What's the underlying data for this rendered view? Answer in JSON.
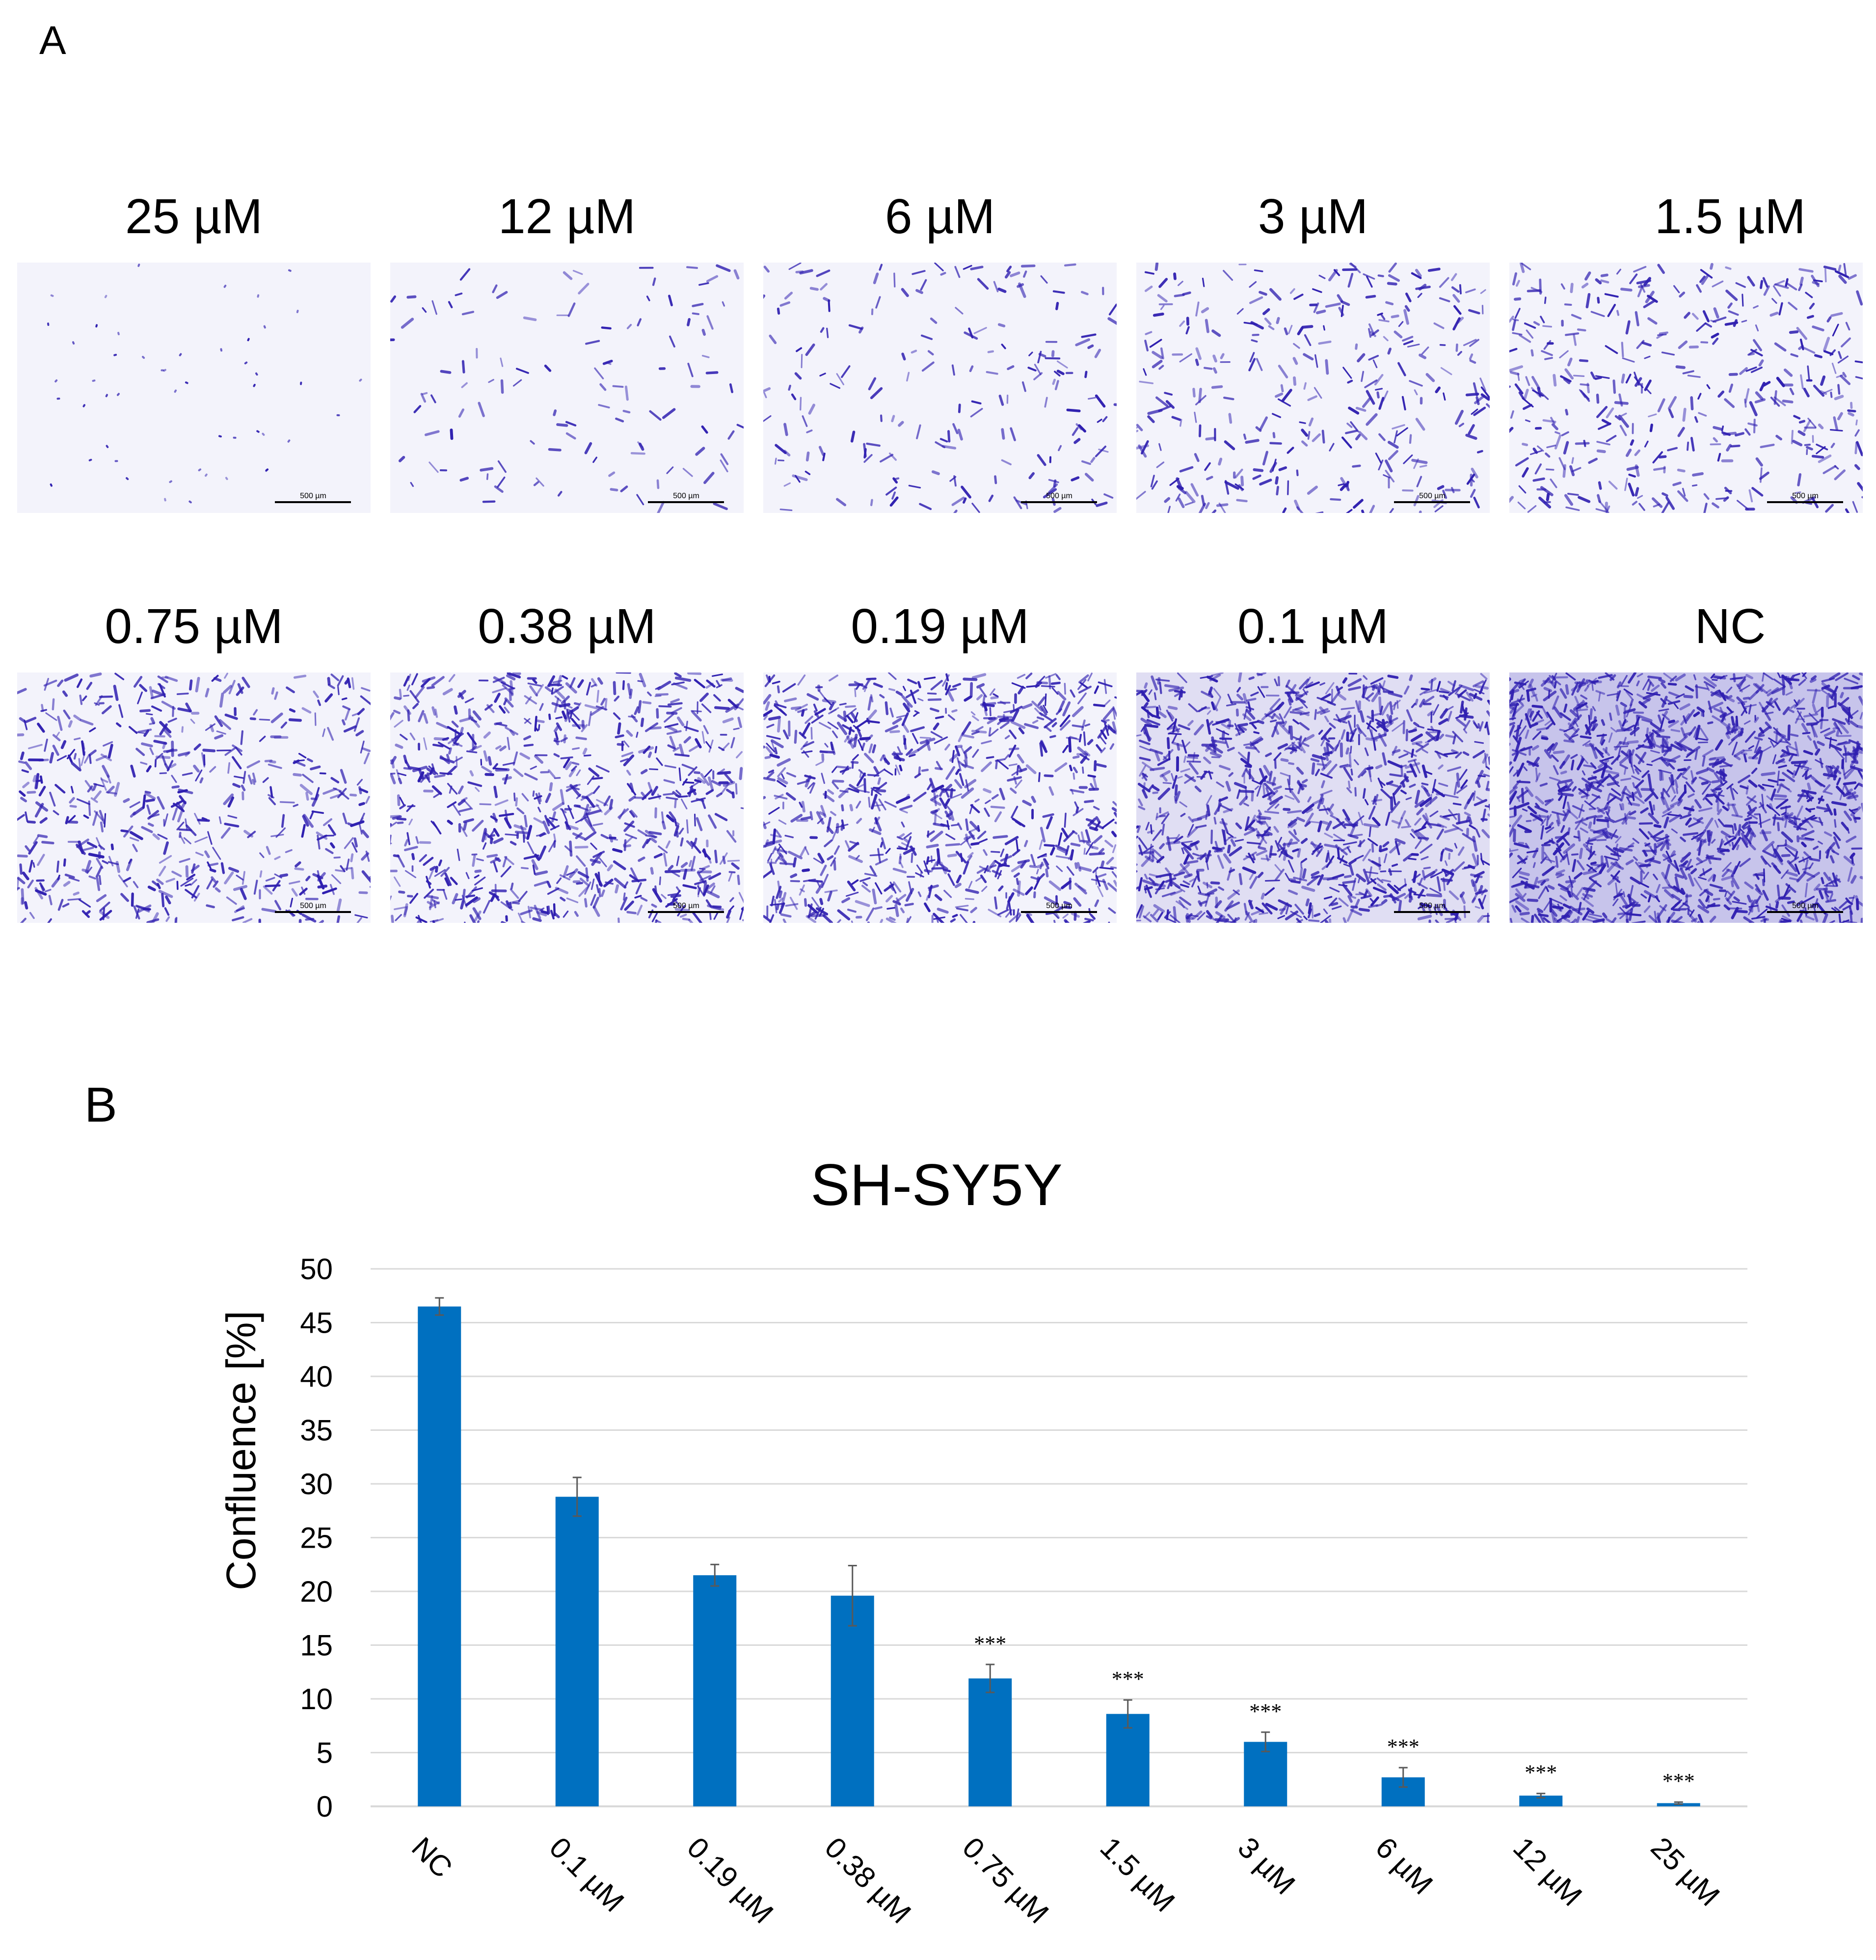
{
  "panel_a": {
    "letter": "A",
    "images": [
      {
        "label": "25 µM",
        "density": 0.015,
        "scale_text": "500 µm"
      },
      {
        "label": "12 µM",
        "density": 0.06,
        "scale_text": "500 µm"
      },
      {
        "label": "6 µM",
        "density": 0.12,
        "scale_text": "500 µm"
      },
      {
        "label": "3 µM",
        "density": 0.22,
        "scale_text": "500 µm"
      },
      {
        "label": "1.5 µM",
        "density": 0.28,
        "scale_text": "500 µm"
      },
      {
        "label": "0.75 µM",
        "density": 0.38,
        "scale_text": "500 µm"
      },
      {
        "label": "0.38 µM",
        "density": 0.55,
        "scale_text": "500 µm"
      },
      {
        "label": "0.19 µM",
        "density": 0.6,
        "scale_text": "500 µm"
      },
      {
        "label": "0.1 µM",
        "density": 0.78,
        "scale_text": "500 µm"
      },
      {
        "label": "NC",
        "density": 1.0,
        "scale_text": "500 µm"
      }
    ],
    "stain_color": "#2f1fb0",
    "background_color": "#f3f3fb"
  },
  "panel_b": {
    "letter": "B"
  },
  "chart_data": {
    "type": "bar",
    "title": "SH-SY5Y",
    "xlabel": "",
    "ylabel": "Confluence [%]",
    "ylim": [
      0,
      50
    ],
    "yticks": [
      0,
      5,
      10,
      15,
      20,
      25,
      30,
      35,
      40,
      45,
      50
    ],
    "grid": true,
    "categories": [
      "NC",
      "0.1 µM",
      "0.19 µM",
      "0.38 µM",
      "0.75 µM",
      "1.5 µM",
      "3 µM",
      "6 µM",
      "12 µM",
      "25 µM"
    ],
    "values": [
      46.5,
      28.8,
      21.5,
      19.6,
      11.9,
      8.6,
      6.0,
      2.7,
      1.0,
      0.3
    ],
    "errors": [
      0.8,
      1.8,
      1.0,
      2.8,
      1.3,
      1.3,
      0.9,
      0.9,
      0.2,
      0.1
    ],
    "significance": [
      "",
      "",
      "",
      "",
      "***",
      "***",
      "***",
      "***",
      "***",
      "***"
    ],
    "bar_color": "#0070c0",
    "grid_color": "#d9d9d9"
  }
}
